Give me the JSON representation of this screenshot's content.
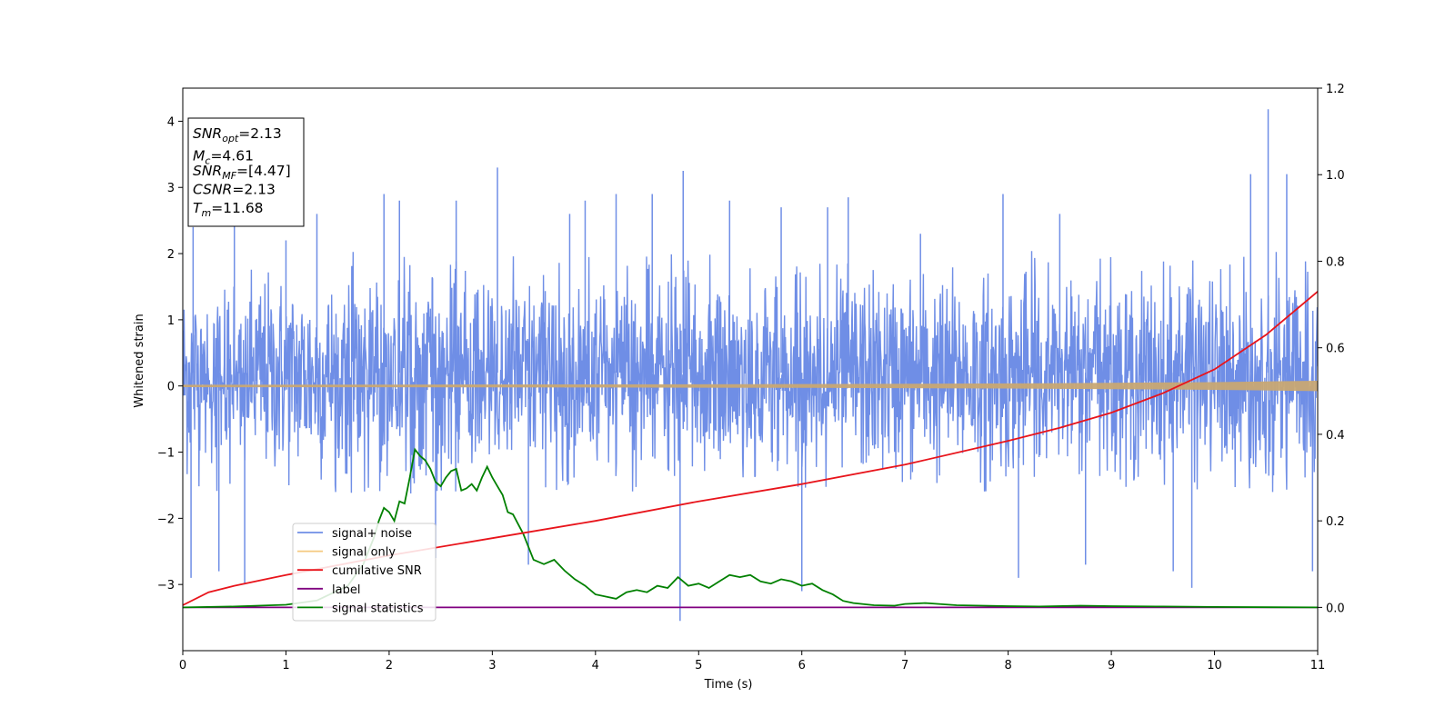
{
  "chart_data": {
    "type": "line",
    "xlabel": "Time (s)",
    "ylabel": "Whitened strain",
    "xlim": [
      0,
      11
    ],
    "ylim": [
      -4,
      4.5
    ],
    "y2lim": [
      -0.1,
      1.2
    ],
    "xticks": [
      "0",
      "1",
      "2",
      "3",
      "4",
      "5",
      "6",
      "7",
      "8",
      "9",
      "10",
      "11"
    ],
    "yticks": [
      "4",
      "3",
      "2",
      "1",
      "0",
      "−1",
      "−2",
      "−3"
    ],
    "yticks_values": [
      4,
      3,
      2,
      1,
      0,
      -1,
      -2,
      -3
    ],
    "y2ticks": [
      "1.2",
      "1.0",
      "0.8",
      "0.6",
      "0.4",
      "0.2",
      "0.0"
    ],
    "y2ticks_values": [
      1.2,
      1.0,
      0.8,
      0.6,
      0.4,
      0.2,
      0.0
    ],
    "annotation": [
      {
        "base": "SNR",
        "sub": "opt",
        "rest": "=2.13"
      },
      {
        "base": "M",
        "sub": "c",
        "rest": "=4.61"
      },
      {
        "base": "SNR",
        "sub": "MF",
        "rest": "=[4.47]"
      },
      {
        "base": "CSNR",
        "sub": "",
        "rest": "=2.13"
      },
      {
        "base": "T",
        "sub": "m",
        "rest": "=11.68"
      }
    ],
    "legend": {
      "placement": "lower-left",
      "items": [
        {
          "label": "signal+ noise",
          "color": "#6f8ee6"
        },
        {
          "label": "signal only",
          "color": "#f5c97f"
        },
        {
          "label": "cumilative SNR",
          "color": "#e8141b"
        },
        {
          "label": "label",
          "color": "#800080"
        },
        {
          "label": "signal statistics",
          "color": "#008000"
        }
      ]
    },
    "series": [
      {
        "name": "signal+ noise",
        "axis": "left",
        "style": "dense noise band, approx. -1.6 to 2.0 with spikes up to 4.18 (t≈10.52) and down to -3.55 (t≈4.82)",
        "spikes": [
          {
            "x": 0.1,
            "y": 2.4
          },
          {
            "x": 0.08,
            "y": -2.9
          },
          {
            "x": 0.35,
            "y": -2.8
          },
          {
            "x": 0.5,
            "y": 2.5
          },
          {
            "x": 0.6,
            "y": -3.0
          },
          {
            "x": 1.0,
            "y": 2.2
          },
          {
            "x": 1.3,
            "y": 2.6
          },
          {
            "x": 1.95,
            "y": 2.9
          },
          {
            "x": 2.1,
            "y": 2.8
          },
          {
            "x": 2.45,
            "y": -2.6
          },
          {
            "x": 2.65,
            "y": 2.8
          },
          {
            "x": 3.05,
            "y": 3.3
          },
          {
            "x": 3.35,
            "y": -2.7
          },
          {
            "x": 3.75,
            "y": 2.6
          },
          {
            "x": 3.9,
            "y": 2.8
          },
          {
            "x": 4.2,
            "y": 2.9
          },
          {
            "x": 4.55,
            "y": 2.9
          },
          {
            "x": 4.82,
            "y": -3.55
          },
          {
            "x": 4.85,
            "y": 3.25
          },
          {
            "x": 5.3,
            "y": 2.8
          },
          {
            "x": 5.8,
            "y": 2.7
          },
          {
            "x": 6.0,
            "y": -3.1
          },
          {
            "x": 6.25,
            "y": 2.7
          },
          {
            "x": 6.45,
            "y": 2.85
          },
          {
            "x": 7.15,
            "y": 2.3
          },
          {
            "x": 7.95,
            "y": 2.9
          },
          {
            "x": 8.1,
            "y": -2.9
          },
          {
            "x": 8.5,
            "y": 2.6
          },
          {
            "x": 8.75,
            "y": -2.7
          },
          {
            "x": 9.6,
            "y": -2.8
          },
          {
            "x": 9.78,
            "y": -3.05
          },
          {
            "x": 10.35,
            "y": 3.2
          },
          {
            "x": 10.52,
            "y": 4.18
          },
          {
            "x": 10.7,
            "y": 3.2
          },
          {
            "x": 10.95,
            "y": -2.8
          }
        ]
      },
      {
        "name": "signal only",
        "axis": "left",
        "x": [
          0,
          2,
          4,
          6,
          8,
          9,
          10,
          10.5,
          11
        ],
        "amplitude": [
          0.01,
          0.012,
          0.015,
          0.02,
          0.03,
          0.04,
          0.05,
          0.06,
          0.07
        ]
      },
      {
        "name": "cumilative SNR",
        "axis": "right",
        "x": [
          0,
          0.25,
          0.5,
          1,
          2,
          3,
          4,
          5,
          6,
          7,
          8,
          8.5,
          9,
          9.5,
          10,
          10.5,
          11
        ],
        "y": [
          0.005,
          0.035,
          0.05,
          0.075,
          0.12,
          0.16,
          0.2,
          0.245,
          0.285,
          0.33,
          0.385,
          0.415,
          0.45,
          0.495,
          0.55,
          0.63,
          0.73
        ]
      },
      {
        "name": "label",
        "axis": "right",
        "x": [
          0,
          11
        ],
        "y": [
          0,
          0
        ]
      },
      {
        "name": "signal statistics",
        "axis": "right",
        "x": [
          0,
          0.5,
          1.0,
          1.3,
          1.6,
          1.75,
          1.85,
          1.9,
          1.95,
          2.0,
          2.05,
          2.1,
          2.15,
          2.2,
          2.25,
          2.3,
          2.35,
          2.4,
          2.45,
          2.5,
          2.55,
          2.6,
          2.65,
          2.7,
          2.75,
          2.8,
          2.85,
          2.9,
          2.95,
          3.0,
          3.05,
          3.1,
          3.15,
          3.2,
          3.3,
          3.4,
          3.5,
          3.6,
          3.7,
          3.8,
          3.9,
          4.0,
          4.1,
          4.2,
          4.3,
          4.4,
          4.5,
          4.6,
          4.7,
          4.8,
          4.9,
          5.0,
          5.1,
          5.2,
          5.3,
          5.4,
          5.5,
          5.6,
          5.7,
          5.8,
          5.9,
          6.0,
          6.1,
          6.2,
          6.3,
          6.4,
          6.5,
          6.7,
          6.9,
          7.0,
          7.2,
          7.5,
          8.0,
          8.3,
          8.7,
          9.0,
          9.5,
          10.0,
          11.0
        ],
        "y": [
          0.0,
          0.002,
          0.006,
          0.016,
          0.05,
          0.1,
          0.16,
          0.2,
          0.23,
          0.22,
          0.2,
          0.245,
          0.24,
          0.3,
          0.365,
          0.35,
          0.34,
          0.32,
          0.29,
          0.28,
          0.3,
          0.315,
          0.32,
          0.27,
          0.275,
          0.285,
          0.27,
          0.3,
          0.325,
          0.3,
          0.28,
          0.26,
          0.22,
          0.215,
          0.17,
          0.11,
          0.1,
          0.11,
          0.085,
          0.065,
          0.05,
          0.03,
          0.025,
          0.02,
          0.035,
          0.04,
          0.035,
          0.05,
          0.045,
          0.07,
          0.05,
          0.055,
          0.045,
          0.06,
          0.075,
          0.07,
          0.075,
          0.06,
          0.055,
          0.065,
          0.06,
          0.05,
          0.055,
          0.04,
          0.03,
          0.015,
          0.01,
          0.005,
          0.004,
          0.008,
          0.01,
          0.005,
          0.003,
          0.002,
          0.004,
          0.003,
          0.002,
          0.001,
          0.0
        ]
      }
    ]
  }
}
